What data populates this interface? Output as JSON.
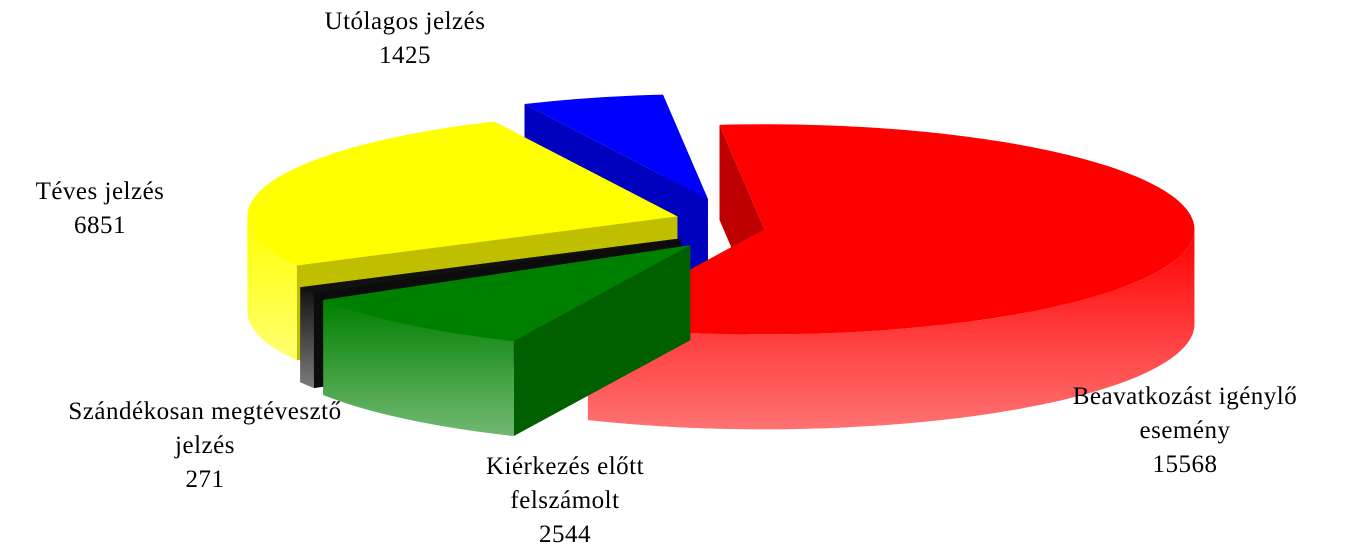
{
  "chart_data": {
    "type": "pie3d",
    "categories": [
      "Beavatkozást igénylő esemény",
      "Kiérkezés előtt felszámolt",
      "Szándékosan megtévesztő jelzés",
      "Téves jelzés",
      "Utólagos jelzés"
    ],
    "values": [
      15568,
      2544,
      271,
      6851,
      1425
    ],
    "colors": [
      "#ff0000",
      "#008000",
      "#111111",
      "#ffff00",
      "#0000ff"
    ]
  }
}
